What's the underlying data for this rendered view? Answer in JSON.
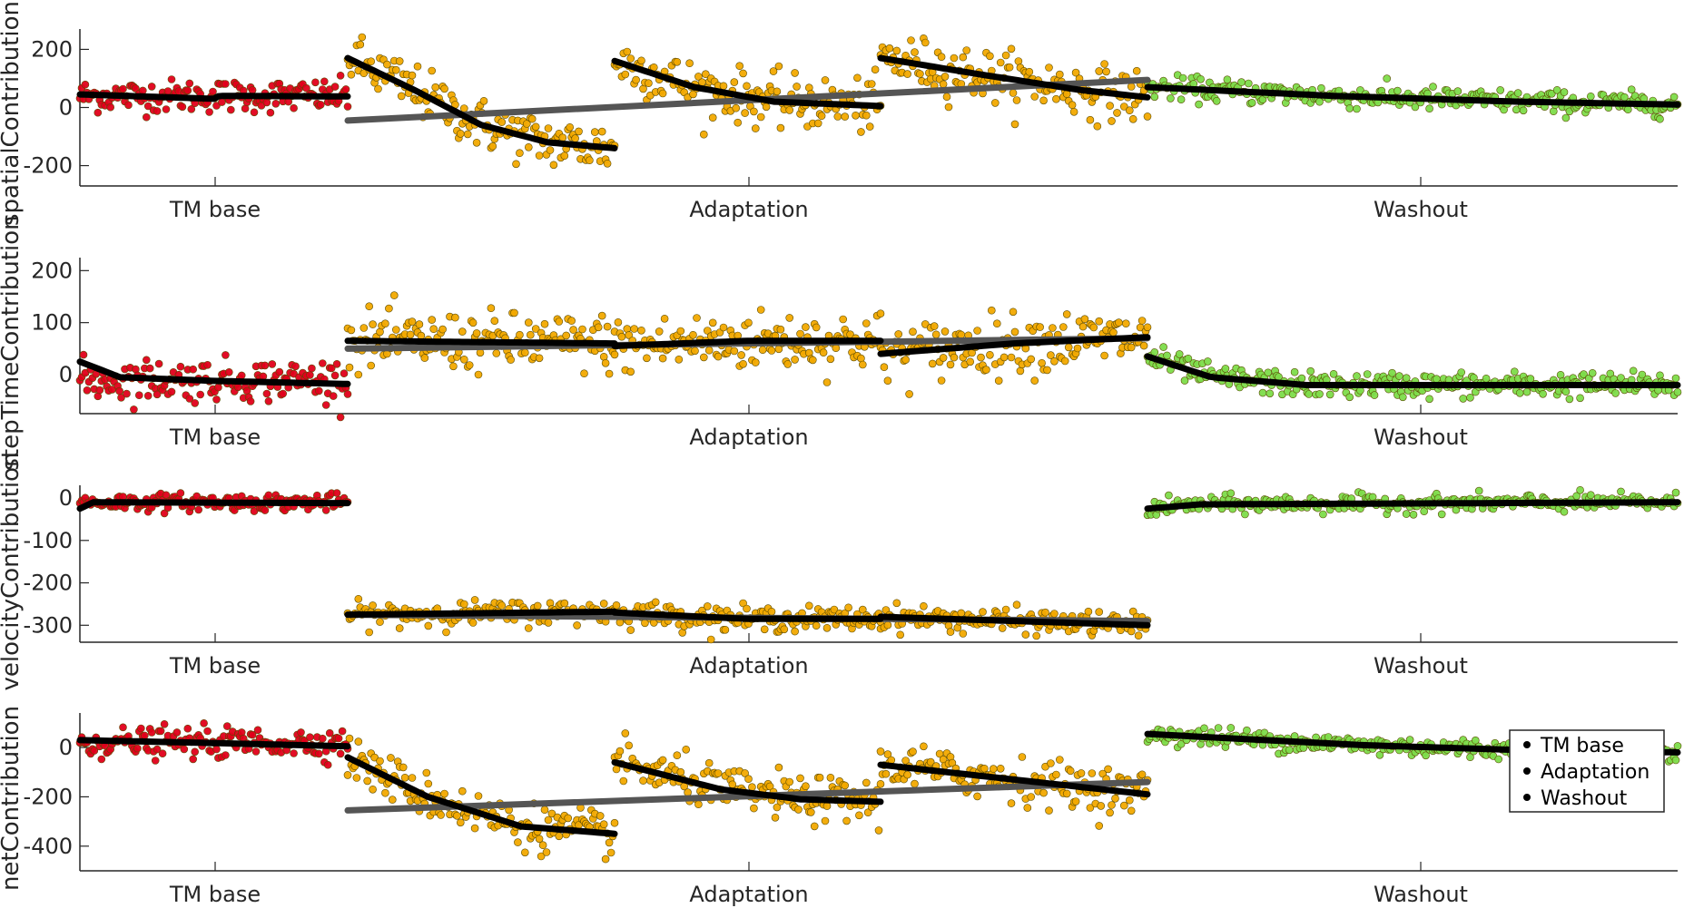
{
  "chart_data": [
    {
      "type": "scatter",
      "ylabel": "spatialContribution",
      "ylim": [
        -270,
        270
      ],
      "yticks": [
        200,
        0,
        -200
      ],
      "x_groups": [
        "TM base",
        "Adaptation",
        "Washout"
      ],
      "fit_lines": {
        "TM base": [
          [
            0,
            45
          ],
          [
            0.5,
            30
          ],
          [
            0.52,
            40
          ],
          [
            1,
            38
          ]
        ],
        "Adaptation_1": [
          [
            0,
            170
          ],
          [
            0.25,
            60
          ],
          [
            0.5,
            -60
          ],
          [
            0.75,
            -120
          ],
          [
            1,
            -140
          ]
        ],
        "Adaptation_2": [
          [
            0,
            160
          ],
          [
            0.3,
            70
          ],
          [
            0.6,
            20
          ],
          [
            1,
            5
          ]
        ],
        "Adaptation_3": [
          [
            0,
            170
          ],
          [
            0.4,
            110
          ],
          [
            0.75,
            60
          ],
          [
            1,
            35
          ]
        ],
        "Adaptation_trend": [
          [
            0,
            -45
          ],
          [
            1,
            95
          ]
        ],
        "Washout": [
          [
            0,
            70
          ],
          [
            0.35,
            40
          ],
          [
            0.7,
            20
          ],
          [
            1,
            10
          ]
        ]
      },
      "points": {
        "TM base": {
          "center": 40,
          "spread": 28
        },
        "Adaptation": {
          "blocks": [
            [
              170,
              -140
            ],
            [
              160,
              5
            ],
            [
              170,
              35
            ]
          ],
          "spread": 45
        },
        "Washout": {
          "center_start": 70,
          "center_end": 10,
          "spread": 20
        }
      }
    },
    {
      "type": "scatter",
      "ylabel": "stepTimeContribution",
      "ylim": [
        -75,
        225
      ],
      "yticks": [
        200,
        100,
        0
      ],
      "x_groups": [
        "TM base",
        "Adaptation",
        "Washout"
      ],
      "fit_lines": {
        "TM base": [
          [
            0,
            25
          ],
          [
            0.15,
            -5
          ],
          [
            0.5,
            -12
          ],
          [
            1,
            -18
          ]
        ],
        "Adaptation_1": [
          [
            0,
            65
          ],
          [
            1,
            60
          ]
        ],
        "Adaptation_2": [
          [
            0,
            55
          ],
          [
            0.5,
            65
          ],
          [
            1,
            65
          ]
        ],
        "Adaptation_3": [
          [
            0,
            40
          ],
          [
            0.5,
            60
          ],
          [
            1,
            72
          ]
        ],
        "Adaptation_trend": [
          [
            0,
            50
          ],
          [
            1,
            70
          ]
        ],
        "Washout": [
          [
            0,
            35
          ],
          [
            0.12,
            -5
          ],
          [
            0.3,
            -20
          ],
          [
            1,
            -20
          ]
        ]
      },
      "points": {
        "TM base": {
          "center": -10,
          "spread": 20
        },
        "Adaptation": {
          "blocks": [
            [
              65,
              60
            ],
            [
              55,
              65
            ],
            [
              40,
              72
            ]
          ],
          "spread": 28
        },
        "Washout": {
          "center_start": 35,
          "center_end": -20,
          "spread": 12
        }
      }
    },
    {
      "type": "scatter",
      "ylabel": "velocityContribution",
      "ylim": [
        -340,
        30
      ],
      "yticks": [
        0,
        -100,
        -200,
        -300
      ],
      "x_groups": [
        "TM base",
        "Adaptation",
        "Washout"
      ],
      "fit_lines": {
        "TM base": [
          [
            0,
            -25
          ],
          [
            0.05,
            -10
          ],
          [
            1,
            -12
          ]
        ],
        "Adaptation_1": [
          [
            0,
            -275
          ],
          [
            1,
            -268
          ]
        ],
        "Adaptation_2": [
          [
            0,
            -270
          ],
          [
            0.5,
            -285
          ],
          [
            1,
            -285
          ]
        ],
        "Adaptation_3": [
          [
            0,
            -280
          ],
          [
            1,
            -300
          ]
        ],
        "Adaptation_trend": [
          [
            0,
            -275
          ],
          [
            1,
            -290
          ]
        ],
        "Washout": [
          [
            0,
            -25
          ],
          [
            0.1,
            -15
          ],
          [
            1,
            -10
          ]
        ]
      },
      "points": {
        "TM base": {
          "center": -10,
          "spread": 10
        },
        "Adaptation": {
          "blocks": [
            [
              -275,
              -268
            ],
            [
              -270,
              -285
            ],
            [
              -280,
              -300
            ]
          ],
          "spread": 14
        },
        "Washout": {
          "center_start": -18,
          "center_end": -10,
          "spread": 10
        }
      }
    },
    {
      "type": "scatter",
      "ylabel": "netContribution",
      "ylim": [
        -500,
        140
      ],
      "yticks": [
        0,
        -200,
        -400
      ],
      "x_groups": [
        "TM base",
        "Adaptation",
        "Washout"
      ],
      "fit_lines": {
        "TM base": [
          [
            0,
            30
          ],
          [
            0.5,
            18
          ],
          [
            1,
            5
          ]
        ],
        "Adaptation_1": [
          [
            0,
            -40
          ],
          [
            0.3,
            -200
          ],
          [
            0.65,
            -320
          ],
          [
            1,
            -350
          ]
        ],
        "Adaptation_2": [
          [
            0,
            -60
          ],
          [
            0.4,
            -170
          ],
          [
            0.7,
            -210
          ],
          [
            1,
            -220
          ]
        ],
        "Adaptation_3": [
          [
            0,
            -70
          ],
          [
            0.5,
            -130
          ],
          [
            1,
            -190
          ]
        ],
        "Adaptation_trend": [
          [
            0,
            -255
          ],
          [
            1,
            -140
          ]
        ],
        "Washout": [
          [
            0,
            55
          ],
          [
            0.4,
            10
          ],
          [
            0.7,
            -10
          ],
          [
            1,
            -20
          ]
        ]
      },
      "points": {
        "TM base": {
          "center": 20,
          "spread": 30
        },
        "Adaptation": {
          "blocks": [
            [
              -40,
              -350
            ],
            [
              -60,
              -220
            ],
            [
              -70,
              -190
            ]
          ],
          "spread": 45
        },
        "Washout": {
          "center_start": 55,
          "center_end": -20,
          "spread": 20
        }
      }
    }
  ],
  "legend": {
    "entries": [
      "TM base",
      "Adaptation",
      "Washout"
    ],
    "placement": "bottom-right"
  },
  "colors": {
    "tm_base": "#e0001a",
    "adaptation": "#f2a900",
    "washout": "#7ddc4a",
    "fit": "#000000",
    "trend": "#555555",
    "axis": "#262626"
  }
}
